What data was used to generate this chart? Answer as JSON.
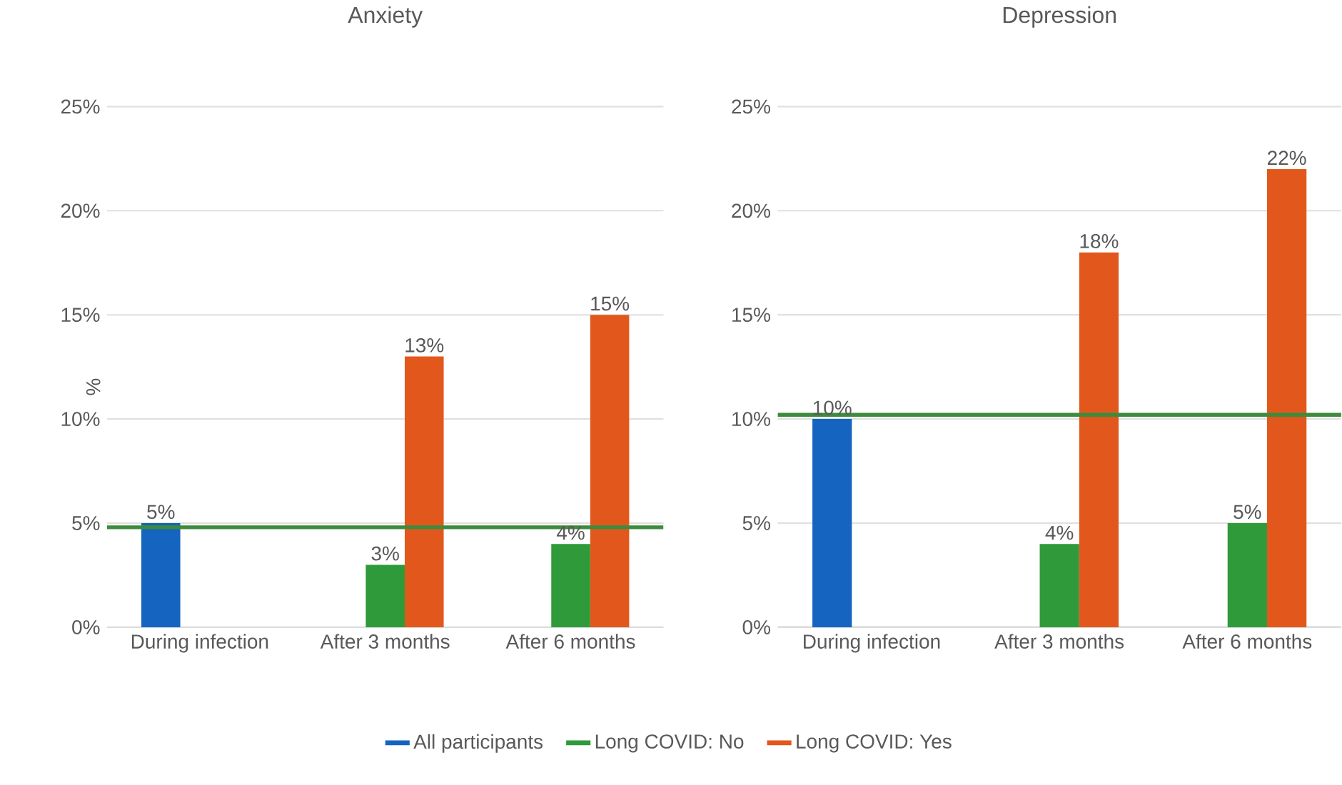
{
  "chart_data": [
    {
      "type": "bar",
      "title": "Anxiety",
      "ylabel": "%",
      "categories": [
        "During infection",
        "After 3 months",
        "After 6 months"
      ],
      "series": [
        {
          "name": "All participants",
          "color": "#1565c0",
          "values": [
            5,
            null,
            null
          ],
          "value_labels": [
            "5%",
            null,
            null
          ]
        },
        {
          "name": "Long COVID: No",
          "color": "#2e9a3a",
          "values": [
            null,
            3,
            4
          ],
          "value_labels": [
            null,
            "3%",
            "4%"
          ]
        },
        {
          "name": "Long COVID: Yes",
          "color": "#e2581c",
          "values": [
            null,
            13,
            15
          ],
          "value_labels": [
            null,
            "13%",
            "15%"
          ]
        }
      ],
      "ylim": [
        0,
        25
      ],
      "yticks": [
        {
          "value": 0,
          "label": "0%"
        },
        {
          "value": 5,
          "label": "5%"
        },
        {
          "value": 10,
          "label": "10%"
        },
        {
          "value": 15,
          "label": "15%"
        },
        {
          "value": 20,
          "label": "20%"
        },
        {
          "value": 25,
          "label": "25%"
        }
      ],
      "grid": "y",
      "legend": "bottom",
      "ref_lines": [
        {
          "axis": "y",
          "value": 4.8,
          "color": "#3d8b3d"
        }
      ]
    },
    {
      "type": "bar",
      "title": "Depression",
      "categories": [
        "During infection",
        "After 3 months",
        "After 6 months"
      ],
      "series": [
        {
          "color": "#1565c0",
          "values": [
            10,
            null,
            null
          ],
          "value_labels": [
            "10%",
            null,
            null
          ]
        },
        {
          "color": "#2e9a3a",
          "values": [
            null,
            4,
            5
          ],
          "value_labels": [
            null,
            "4%",
            "5%"
          ]
        },
        {
          "color": "#e2581c",
          "values": [
            null,
            18,
            22
          ],
          "value_labels": [
            null,
            "18%",
            "22%"
          ]
        }
      ],
      "ylim": [
        0,
        25
      ],
      "yticks": [
        {
          "value": 0,
          "label": "0%"
        },
        {
          "value": 5,
          "label": "5%"
        },
        {
          "value": 10,
          "label": "10%"
        },
        {
          "value": 15,
          "label": "15%"
        },
        {
          "value": 20,
          "label": "20%"
        },
        {
          "value": 25,
          "label": "25%"
        }
      ],
      "grid": "y",
      "ref_lines": [
        {
          "axis": "y",
          "value": 10.2,
          "color": "#3d8b3d"
        }
      ]
    }
  ]
}
